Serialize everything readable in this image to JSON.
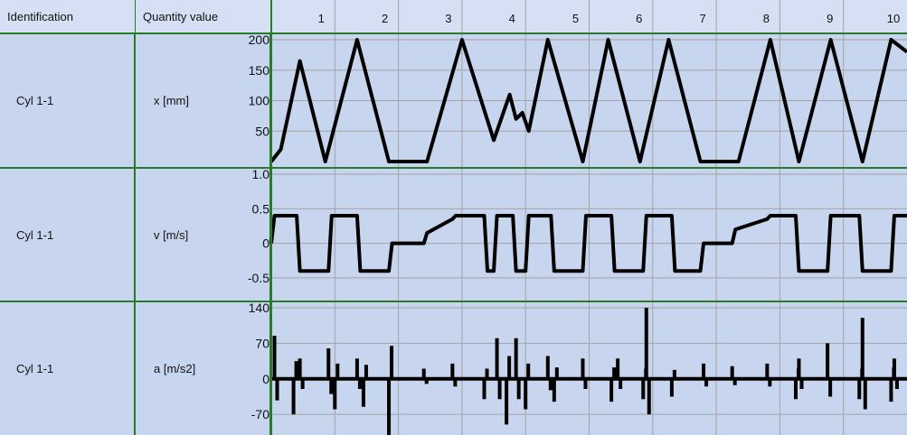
{
  "header": {
    "identification": "Identification",
    "quantity_value": "Quantity value",
    "x_ticks": [
      "1",
      "2",
      "3",
      "4",
      "5",
      "6",
      "7",
      "8",
      "9",
      "10"
    ]
  },
  "rows": [
    {
      "id": "Cyl 1-1",
      "quantity": "x [mm]",
      "y_ticks": [
        "200",
        "150",
        "100",
        "50"
      ]
    },
    {
      "id": "Cyl 1-1",
      "quantity": "v [m/s]",
      "y_ticks": [
        "1.0",
        "0.5",
        "0",
        "-0.5"
      ]
    },
    {
      "id": "Cyl 1-1",
      "quantity": "a [m/s2]",
      "y_ticks": [
        "140",
        "70",
        "0",
        "-70"
      ]
    }
  ],
  "colors": {
    "background": "#c7d5ee",
    "grid_border": "#2b7a2b",
    "trace": "#000000"
  },
  "chart_data": [
    {
      "type": "line",
      "ylabel": "x [mm]",
      "ylim": [
        0,
        200
      ],
      "x": [
        0,
        0.15,
        0.45,
        0.85,
        1.35,
        1.85,
        2.1,
        2.45,
        3.0,
        3.5,
        3.75,
        3.85,
        3.95,
        4.05,
        4.35,
        4.9,
        5.3,
        5.8,
        6.25,
        6.75,
        7.1,
        7.35,
        7.85,
        8.3,
        8.8,
        9.3,
        9.75,
        10.0
      ],
      "values": [
        0,
        20,
        165,
        0,
        200,
        0,
        0,
        0,
        200,
        35,
        110,
        70,
        80,
        50,
        200,
        0,
        200,
        0,
        200,
        0,
        0,
        0,
        200,
        0,
        200,
        0,
        200,
        180
      ]
    },
    {
      "type": "line",
      "ylabel": "v [m/s]",
      "ylim": [
        -0.75,
        1.0
      ],
      "x": [
        0,
        0.05,
        0.4,
        0.45,
        0.9,
        0.95,
        1.35,
        1.4,
        1.85,
        1.9,
        2.4,
        2.45,
        2.85,
        2.9,
        3.35,
        3.4,
        3.5,
        3.55,
        3.8,
        3.85,
        4.0,
        4.05,
        4.4,
        4.45,
        4.9,
        4.95,
        5.35,
        5.4,
        5.85,
        5.9,
        6.3,
        6.35,
        6.75,
        6.8,
        7.25,
        7.3,
        7.8,
        7.85,
        8.25,
        8.3,
        8.75,
        8.8,
        9.25,
        9.3,
        9.75,
        9.8,
        10.0
      ],
      "values": [
        0,
        0.4,
        0.4,
        -0.4,
        -0.4,
        0.4,
        0.4,
        -0.4,
        -0.4,
        0,
        0,
        0.15,
        0.35,
        0.4,
        0.4,
        -0.4,
        -0.4,
        0.4,
        0.4,
        -0.4,
        -0.4,
        0.4,
        0.4,
        -0.4,
        -0.4,
        0.4,
        0.4,
        -0.4,
        -0.4,
        0.4,
        0.4,
        -0.4,
        -0.4,
        0,
        0,
        0.2,
        0.35,
        0.4,
        0.4,
        -0.4,
        -0.4,
        0.4,
        0.4,
        -0.4,
        -0.4,
        0.4,
        0.4
      ]
    },
    {
      "type": "line",
      "ylabel": "a [m/s2]",
      "ylim": [
        -100,
        140
      ],
      "x": [
        0.05,
        0.35,
        0.45,
        0.9,
        1.0,
        1.35,
        1.45,
        1.85,
        2.4,
        2.85,
        3.35,
        3.55,
        3.7,
        3.85,
        4.0,
        4.35,
        4.45,
        4.9,
        5.35,
        5.45,
        5.85,
        5.9,
        6.3,
        6.8,
        7.25,
        7.8,
        8.25,
        8.3,
        8.75,
        9.25,
        9.3,
        9.75,
        9.8
      ],
      "values": [
        85,
        -70,
        40,
        60,
        -60,
        40,
        -55,
        -130,
        20,
        30,
        -40,
        80,
        -90,
        80,
        -60,
        45,
        -45,
        40,
        -45,
        40,
        -40,
        140,
        -35,
        30,
        25,
        30,
        -40,
        40,
        70,
        -40,
        120,
        -45,
        40
      ]
    }
  ]
}
